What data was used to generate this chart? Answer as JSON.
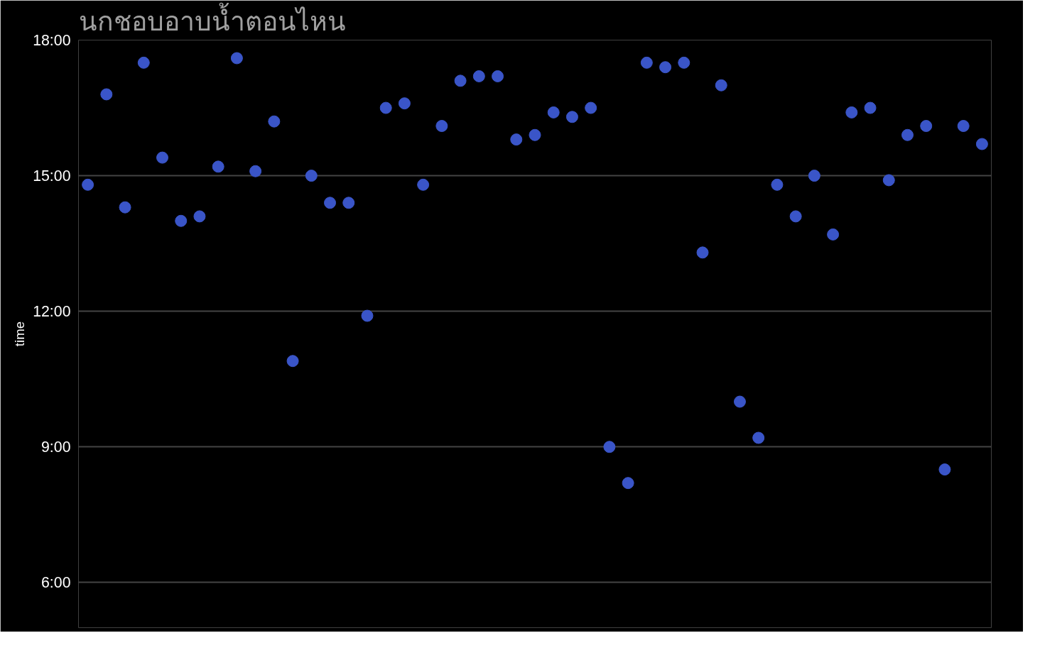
{
  "chart_data": {
    "type": "scatter",
    "title": "นกชอบอาบน้ำตอนไหน",
    "ylabel": "time",
    "categories": [
      null,
      null,
      null,
      null,
      null,
      null,
      null,
      null,
      null,
      null,
      null,
      null,
      null,
      null,
      null,
      null,
      null,
      null,
      null,
      null,
      null,
      null,
      null,
      null,
      null,
      null,
      null,
      null,
      null,
      null,
      null,
      null,
      null,
      null,
      null,
      null,
      null,
      null,
      null,
      null,
      null,
      null,
      null,
      null,
      null,
      null,
      null,
      null,
      null
    ],
    "series": [
      {
        "color": "#3a55c8",
        "values": [
          14.8,
          16.8,
          14.3,
          17.5,
          15.4,
          14.0,
          14.1,
          15.2,
          17.6,
          15.1,
          16.2,
          10.9,
          15.0,
          14.4,
          14.4,
          11.9,
          16.5,
          16.6,
          14.8,
          16.1,
          17.1,
          17.2,
          17.2,
          15.8,
          15.9,
          16.4,
          16.3,
          16.5,
          9.0,
          8.2,
          17.5,
          17.4,
          17.5,
          13.3,
          17.0,
          10.0,
          9.2,
          14.8,
          14.1,
          15.0,
          13.7,
          16.4,
          16.5,
          14.9,
          15.9,
          16.1,
          8.5,
          16.1,
          15.7
        ]
      }
    ],
    "ylim": [
      5,
      18
    ],
    "yticks": [
      {
        "value": 6,
        "label": "6:00"
      },
      {
        "value": 9,
        "label": "9:00"
      },
      {
        "value": 12,
        "label": "12:00"
      },
      {
        "value": 15,
        "label": "15:00"
      },
      {
        "value": 18,
        "label": "18:00"
      }
    ],
    "grid": "y",
    "marker": "circle"
  }
}
